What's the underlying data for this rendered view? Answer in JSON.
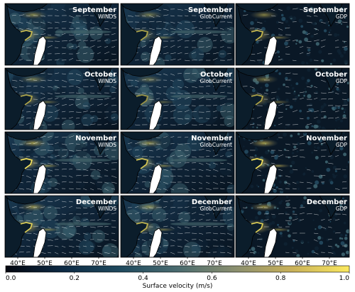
{
  "chart_data": {
    "type": "heatmap",
    "description_kind": "map-panel-grid",
    "months": [
      "September",
      "October",
      "November",
      "December"
    ],
    "sources": [
      "WINDS",
      "GlobCurrent",
      "GDP"
    ],
    "x_ticks": [
      "40°E",
      "50°E",
      "60°E",
      "70°E"
    ],
    "colorbar": {
      "label": "Surface velocity (m/s)",
      "range": [
        0.0,
        1.0
      ],
      "ticks": [
        "0.0",
        "0.2",
        "0.4",
        "0.6",
        "0.8",
        "1.0"
      ],
      "colors": [
        "#03060f",
        "#0d2a44",
        "#1f4a5e",
        "#4a6b6f",
        "#8a8f6f",
        "#c9b15a",
        "#fbe95f"
      ]
    },
    "land_color": "#ffffff",
    "coast_color": "#000000",
    "vector_color": "#ffffff"
  }
}
